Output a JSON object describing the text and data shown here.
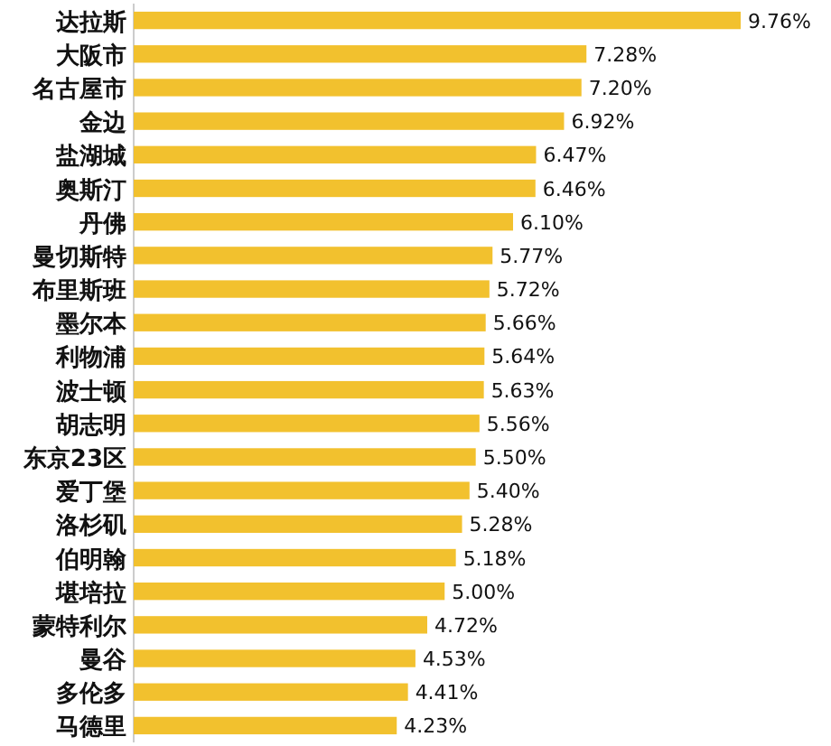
{
  "chart_data": {
    "type": "bar",
    "orientation": "horizontal",
    "color": "#f2c12e",
    "categories": [
      "达拉斯",
      "大阪市",
      "名古屋市",
      "金边",
      "盐湖城",
      "奥斯汀",
      "丹佛",
      "曼切斯特",
      "布里斯班",
      "墨尔本",
      "利物浦",
      "波士顿",
      "胡志明",
      "东京23区",
      "爱丁堡",
      "洛杉矶",
      "伯明翰",
      "堪培拉",
      "蒙特利尔",
      "曼谷",
      "多伦多",
      "马德里"
    ],
    "values": [
      9.76,
      7.28,
      7.2,
      6.92,
      6.47,
      6.46,
      6.1,
      5.77,
      5.72,
      5.66,
      5.64,
      5.63,
      5.56,
      5.5,
      5.4,
      5.28,
      5.18,
      5.0,
      4.72,
      4.53,
      4.41,
      4.23
    ],
    "value_labels": [
      "9.76%",
      "7.28%",
      "7.20%",
      "6.92%",
      "6.47%",
      "6.46%",
      "6.10%",
      "5.77%",
      "5.72%",
      "5.66%",
      "5.64%",
      "5.63%",
      "5.56%",
      "5.50%",
      "5.40%",
      "5.28%",
      "5.18%",
      "5.00%",
      "4.72%",
      "4.53%",
      "4.41%",
      "4.23%"
    ]
  }
}
